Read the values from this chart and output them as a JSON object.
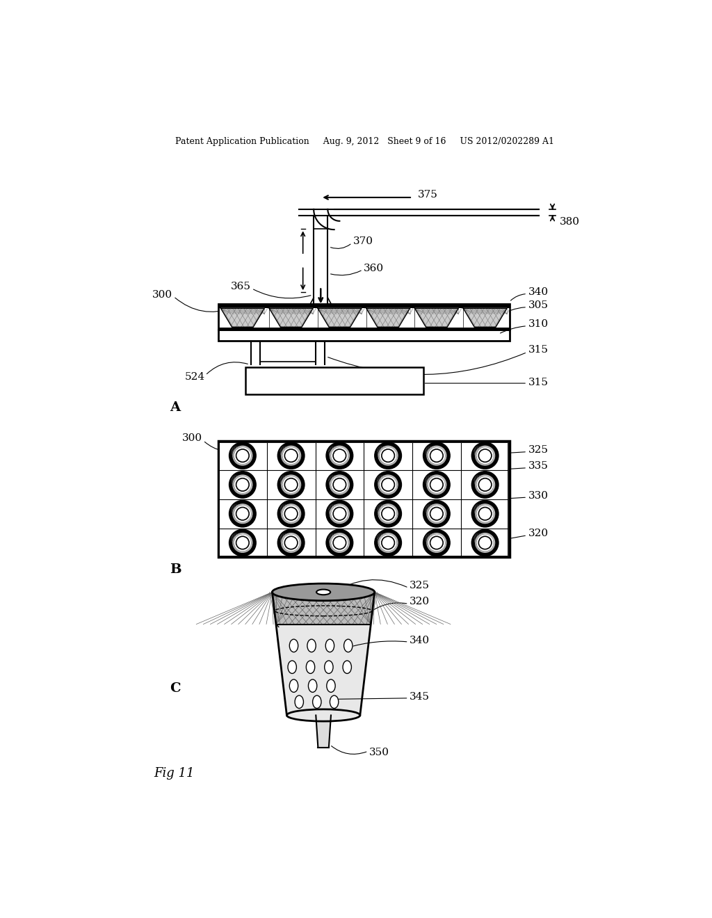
{
  "bg_color": "#ffffff",
  "header_text": "Patent Application Publication     Aug. 9, 2012   Sheet 9 of 16     US 2012/0202289 A1",
  "fig_label": "Fig 11",
  "section_A_label": "A",
  "section_B_label": "B",
  "section_C_label": "C",
  "header_fontsize": 9,
  "label_fontsize": 11,
  "section_fontsize": 14
}
